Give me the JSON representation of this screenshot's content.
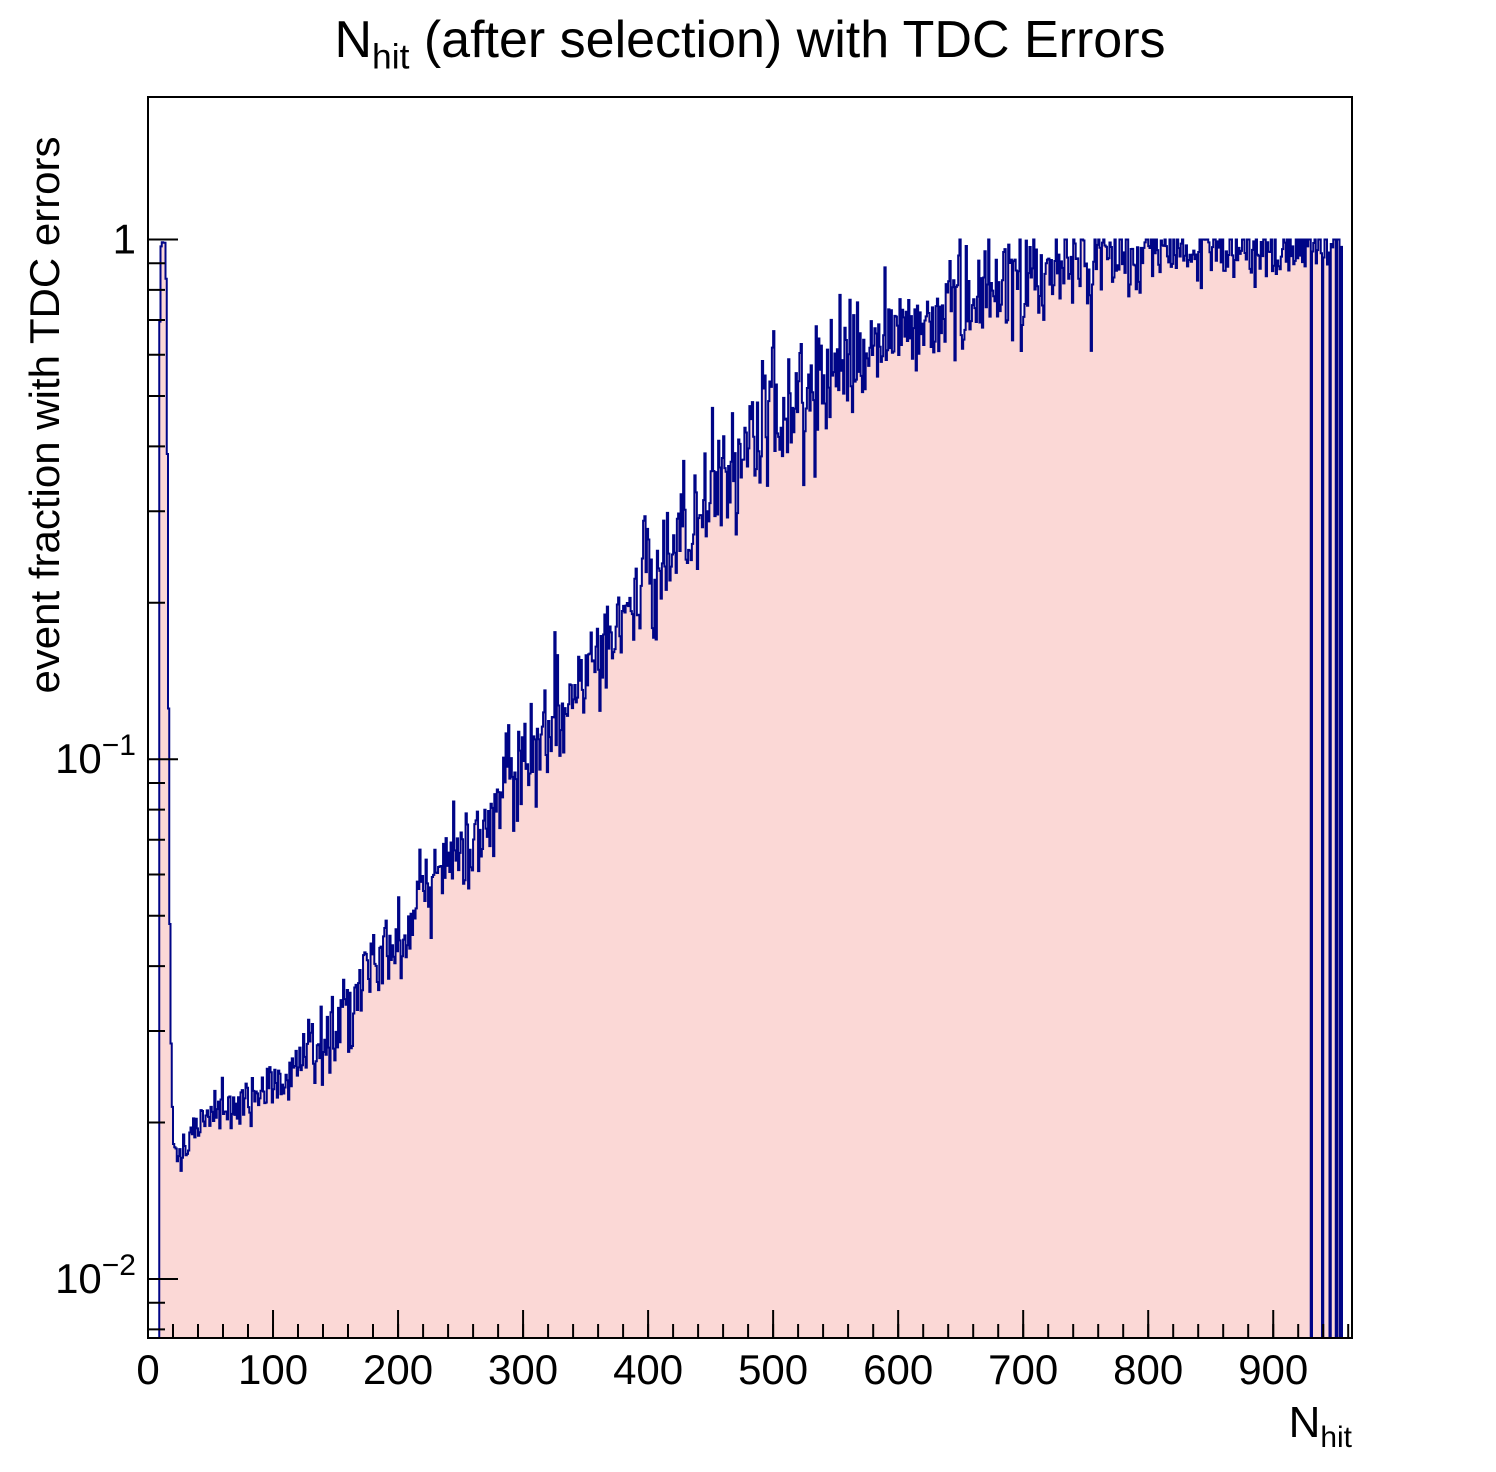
{
  "title": {
    "main": "N",
    "sub": "hit",
    "rest": " (after selection) with TDC Errors"
  },
  "axes": {
    "x": {
      "label_main": "N",
      "label_sub": "hit",
      "min": 0,
      "max": 963,
      "major_ticks": [
        0,
        100,
        200,
        300,
        400,
        500,
        600,
        700,
        800,
        900
      ],
      "minor_step": 20
    },
    "y": {
      "label": "event fraction with TDC errors",
      "scale": "log",
      "min": 0.0077,
      "max": 1.88,
      "major_ticks": [
        {
          "value": 1,
          "mantissa": "1",
          "exponent": ""
        },
        {
          "value": 0.1,
          "mantissa": "10",
          "exponent": "−1"
        },
        {
          "value": 0.01,
          "mantissa": "10",
          "exponent": "−2"
        }
      ]
    }
  },
  "chart_data": {
    "type": "bar",
    "subtype": "histogram-step-filled",
    "title": "N_hit (after selection) with TDC Errors",
    "xlabel": "N_hit",
    "ylabel": "event fraction with TDC errors",
    "xlim": [
      0,
      963
    ],
    "ylim": [
      0.0077,
      1.88
    ],
    "yscale": "log",
    "grid": false,
    "legend": "none",
    "bin_width": 1,
    "data_x_start": 9,
    "data_x_end": 955,
    "value_cap": 1.0,
    "trend_points": [
      [
        9,
        0.5
      ],
      [
        10,
        0.95
      ],
      [
        11,
        1.0
      ],
      [
        14,
        1.0
      ],
      [
        15,
        0.7
      ],
      [
        16,
        0.22
      ],
      [
        17,
        0.07
      ],
      [
        18,
        0.032
      ],
      [
        20,
        0.0185
      ],
      [
        24,
        0.0172
      ],
      [
        28,
        0.0178
      ],
      [
        35,
        0.019
      ],
      [
        45,
        0.0205
      ],
      [
        55,
        0.0215
      ],
      [
        65,
        0.0215
      ],
      [
        75,
        0.022
      ],
      [
        85,
        0.0222
      ],
      [
        95,
        0.0228
      ],
      [
        105,
        0.0238
      ],
      [
        115,
        0.0252
      ],
      [
        125,
        0.0268
      ],
      [
        135,
        0.0285
      ],
      [
        145,
        0.0302
      ],
      [
        155,
        0.0322
      ],
      [
        165,
        0.0348
      ],
      [
        175,
        0.0375
      ],
      [
        185,
        0.0405
      ],
      [
        195,
        0.0435
      ],
      [
        205,
        0.047
      ],
      [
        215,
        0.051
      ],
      [
        225,
        0.055
      ],
      [
        235,
        0.059
      ],
      [
        245,
        0.064
      ],
      [
        255,
        0.0685
      ],
      [
        265,
        0.0738
      ],
      [
        275,
        0.0795
      ],
      [
        285,
        0.0862
      ],
      [
        295,
        0.0935
      ],
      [
        305,
        0.101
      ],
      [
        315,
        0.109
      ],
      [
        325,
        0.1175
      ],
      [
        335,
        0.127
      ],
      [
        345,
        0.1385
      ],
      [
        355,
        0.151
      ],
      [
        365,
        0.1645
      ],
      [
        375,
        0.179
      ],
      [
        385,
        0.1955
      ],
      [
        395,
        0.2125
      ],
      [
        405,
        0.231
      ],
      [
        415,
        0.249
      ],
      [
        425,
        0.2675
      ],
      [
        435,
        0.287
      ],
      [
        445,
        0.3095
      ],
      [
        455,
        0.3335
      ],
      [
        465,
        0.358
      ],
      [
        475,
        0.3825
      ],
      [
        485,
        0.4075
      ],
      [
        495,
        0.433
      ],
      [
        505,
        0.4565
      ],
      [
        515,
        0.479
      ],
      [
        525,
        0.5015
      ],
      [
        535,
        0.522
      ],
      [
        545,
        0.5445
      ],
      [
        555,
        0.569
      ],
      [
        565,
        0.5935
      ],
      [
        575,
        0.6175
      ],
      [
        585,
        0.6385
      ],
      [
        595,
        0.6585
      ],
      [
        605,
        0.6785
      ],
      [
        625,
        0.7145
      ],
      [
        645,
        0.7485
      ],
      [
        665,
        0.7815
      ],
      [
        685,
        0.8145
      ],
      [
        705,
        0.8475
      ],
      [
        725,
        0.8725
      ],
      [
        745,
        0.8885
      ],
      [
        765,
        0.9035
      ],
      [
        785,
        0.9185
      ],
      [
        805,
        0.9325
      ],
      [
        825,
        0.9425
      ],
      [
        845,
        0.9515
      ],
      [
        865,
        0.9565
      ],
      [
        885,
        0.9615
      ],
      [
        905,
        0.9665
      ],
      [
        925,
        0.973
      ],
      [
        945,
        0.988
      ],
      [
        954,
        1.0
      ]
    ],
    "noise_log10_sd_profile": [
      [
        0,
        0.004
      ],
      [
        15,
        0.006
      ],
      [
        25,
        0.015
      ],
      [
        50,
        0.022
      ],
      [
        100,
        0.03
      ],
      [
        150,
        0.037
      ],
      [
        200,
        0.042
      ],
      [
        250,
        0.047
      ],
      [
        300,
        0.052
      ],
      [
        350,
        0.056
      ],
      [
        400,
        0.057
      ],
      [
        450,
        0.06
      ],
      [
        500,
        0.06
      ],
      [
        550,
        0.06
      ],
      [
        600,
        0.055
      ],
      [
        650,
        0.05
      ],
      [
        700,
        0.046
      ],
      [
        750,
        0.04
      ],
      [
        800,
        0.036
      ],
      [
        850,
        0.034
      ],
      [
        900,
        0.034
      ],
      [
        954,
        0.02
      ]
    ],
    "gap_bins": [
      930,
      939,
      945,
      950,
      953
    ],
    "colors": {
      "fill": "#fbd8d6",
      "line": "#000587",
      "frame": "#000000",
      "text": "#000000",
      "background": "#ffffff"
    }
  }
}
